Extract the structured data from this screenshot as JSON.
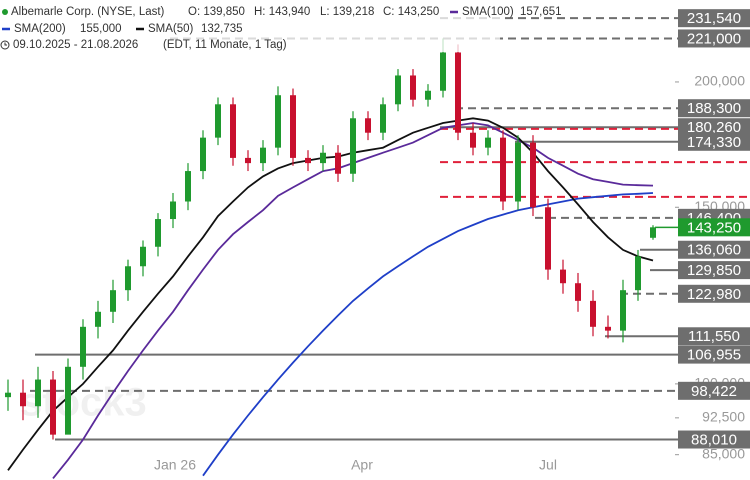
{
  "chart_data": {
    "type": "candlestick",
    "header": {
      "instrument": "Albemarle Corp. (NYSE, Last)",
      "ohlc": [
        "O: 139,850",
        "H: 143,940",
        "L: 139,218",
        "C: 143,250"
      ],
      "range": "09.10.2025 - 21.08.2026",
      "interval": "(EDT, 11 Monate, 1 Tag)"
    },
    "watermark": "stock3",
    "log_scale": true,
    "ylim": [
      80200,
      241400
    ],
    "yticks": [
      {
        "value": 85000,
        "label": "85,000"
      },
      {
        "value": 92500,
        "label": "92,500"
      },
      {
        "value": 100000,
        "label": "100,000"
      },
      {
        "value": 150000,
        "label": "150,000"
      },
      {
        "value": 200000,
        "label": "200,000"
      }
    ],
    "x_labels": [
      "Jan 26",
      "Apr",
      "Jul"
    ],
    "up_color": "#1f9a2e",
    "down_color": "#c8102e",
    "open": [
      97000,
      98000,
      95000,
      101000,
      89000,
      104000,
      114000,
      118000,
      124000,
      131000,
      137000,
      146000,
      152000,
      163000,
      176000,
      190000,
      168000,
      166000,
      172000,
      194000,
      168000,
      166000,
      170000,
      162000,
      184000,
      178000,
      190000,
      203000,
      192000,
      196000,
      214000,
      178000,
      172000,
      176000,
      152000,
      174000,
      150000,
      130000,
      126000,
      121000,
      114000,
      113000,
      124000,
      139850
    ],
    "high": [
      101000,
      101000,
      104000,
      103000,
      106000,
      116000,
      121000,
      127000,
      133000,
      139000,
      148000,
      155000,
      166000,
      179000,
      193000,
      193000,
      171000,
      175000,
      198000,
      197000,
      171000,
      173000,
      173000,
      187000,
      187000,
      193000,
      206000,
      206000,
      199000,
      221000,
      218000,
      182000,
      179000,
      179000,
      177000,
      177000,
      153000,
      133000,
      129000,
      124000,
      117000,
      127000,
      136000,
      143940
    ],
    "low": [
      94000,
      92000,
      92500,
      88010,
      89500,
      101000,
      111000,
      115000,
      121000,
      128000,
      134000,
      143000,
      149000,
      160000,
      173000,
      165000,
      163000,
      163000,
      169000,
      165000,
      163000,
      163000,
      159000,
      159000,
      175000,
      175000,
      187000,
      189000,
      189000,
      193000,
      175000,
      169000,
      169000,
      149000,
      149000,
      147000,
      127000,
      123000,
      118000,
      111550,
      111000,
      110000,
      121000,
      139218
    ],
    "close": [
      98000,
      95000,
      101000,
      89000,
      104000,
      114000,
      118000,
      124000,
      131000,
      137000,
      146000,
      152000,
      163000,
      176000,
      190000,
      168000,
      166000,
      172000,
      194000,
      168000,
      166000,
      170000,
      162000,
      184000,
      178000,
      190000,
      203000,
      192000,
      196000,
      214000,
      178000,
      172000,
      176000,
      152000,
      174000,
      150000,
      130000,
      126000,
      121000,
      114000,
      113000,
      124000,
      134000,
      143250
    ],
    "series": [
      {
        "name": "SMA(100)",
        "value_label": "157,651",
        "color": "#5a2a9a",
        "values": [
          null,
          null,
          null,
          80500,
          84000,
          88000,
          93000,
          98000,
          103000,
          108000,
          113000,
          118000,
          124000,
          130000,
          136000,
          141000,
          145000,
          149000,
          154000,
          157000,
          160000,
          163000,
          164000,
          166000,
          168000,
          170000,
          172000,
          174000,
          177000,
          180000,
          181000,
          182000,
          181000,
          178000,
          175000,
          172000,
          168000,
          165000,
          162000,
          160000,
          159000,
          158000,
          157800,
          157651
        ]
      },
      {
        "name": "SMA(200)",
        "value_label": "155,000",
        "color": "#1f3fc8",
        "values": [
          null,
          null,
          null,
          null,
          null,
          null,
          null,
          null,
          null,
          null,
          null,
          null,
          null,
          81000,
          85000,
          89000,
          93000,
          97000,
          101000,
          105000,
          109000,
          113000,
          117000,
          121000,
          124500,
          128000,
          131000,
          134000,
          137000,
          139500,
          142000,
          144000,
          146000,
          147500,
          149000,
          150000,
          151000,
          152000,
          153000,
          153500,
          154000,
          154500,
          154700,
          155000
        ]
      },
      {
        "name": "SMA(50)",
        "value_label": "132,735",
        "color": "#111111",
        "values": [
          82000,
          86000,
          90000,
          94000,
          97000,
          100000,
          104000,
          108000,
          113000,
          118000,
          123000,
          128000,
          134000,
          140000,
          147000,
          152000,
          157000,
          161000,
          164000,
          166000,
          167000,
          168000,
          168500,
          170000,
          171000,
          172000,
          175000,
          178000,
          180000,
          182000,
          183000,
          184000,
          183000,
          180000,
          176000,
          170000,
          163000,
          157000,
          151000,
          145000,
          140000,
          136000,
          134000,
          132735
        ]
      }
    ],
    "levels": [
      {
        "value": 231540,
        "label": "231,540",
        "style": "dashed"
      },
      {
        "value": 221000,
        "label": "221,000",
        "style": "dashed"
      },
      {
        "value": 188300,
        "label": "188,300",
        "style": "dashed"
      },
      {
        "value": 180260,
        "label": "180,260",
        "style": "solid"
      },
      {
        "value": 174330,
        "label": "174,330",
        "style": "solid"
      },
      {
        "value": 146400,
        "label": "146,400",
        "style": "dashed"
      },
      {
        "value": 143250,
        "label": "143,250",
        "style": "current"
      },
      {
        "value": 136060,
        "label": "136,060",
        "style": "solid"
      },
      {
        "value": 129850,
        "label": "129,850",
        "style": "solid"
      },
      {
        "value": 122980,
        "label": "122,980",
        "style": "dashed"
      },
      {
        "value": 111550,
        "label": "111,550",
        "style": "solid"
      },
      {
        "value": 106955,
        "label": "106,955",
        "style": "solid"
      },
      {
        "value": 98422,
        "label": "98,422",
        "style": "dashed"
      },
      {
        "value": 88010,
        "label": "88,010",
        "style": "solid"
      },
      {
        "value": 179600,
        "style": "red"
      },
      {
        "value": 166400,
        "style": "red"
      },
      {
        "value": 153600,
        "style": "red"
      }
    ]
  }
}
